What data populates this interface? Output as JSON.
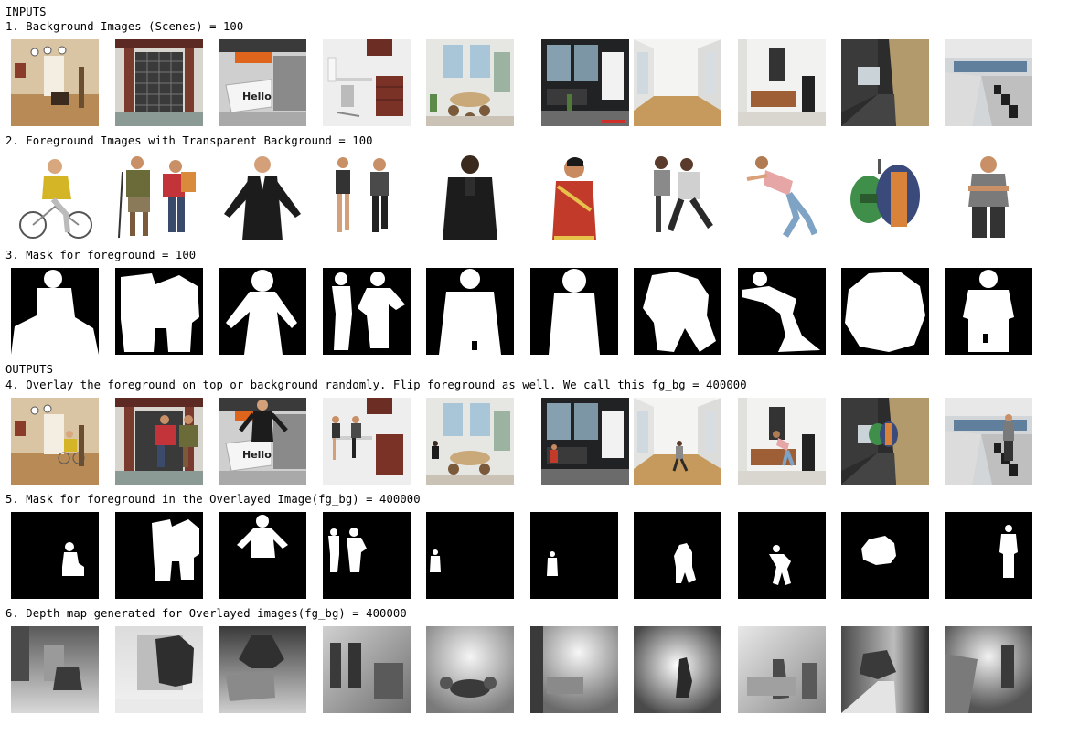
{
  "headings": {
    "inputs": "INPUTS",
    "bg": "1. Background Images (Scenes) = 100",
    "fg": "2. Foreground Images with Transparent Background = 100",
    "mask": "3. Mask for foreground = 100",
    "outputs": "OUTPUTS",
    "fgbg": "4. Overlay the foreground on top or background randomly. Flip foreground as well. We call this fg_bg = 400000",
    "fgbg_mask": "5. Mask for foreground in the Overlayed Image(fg_bg) = 400000",
    "depth": "6. Depth map generated for Overlayed images(fg_bg) = 400000"
  },
  "scene_texts": {
    "hello": "Hello"
  },
  "colors": {
    "shirt_yellow": "#d4b526",
    "jacket_black": "#1c1c1c",
    "saree_red": "#c23a2a",
    "jeans_blue": "#7fa3c4",
    "backpack_green": "#3f8f4a",
    "backpack_orange": "#d9823a",
    "accent_orange": "#e0651c"
  }
}
